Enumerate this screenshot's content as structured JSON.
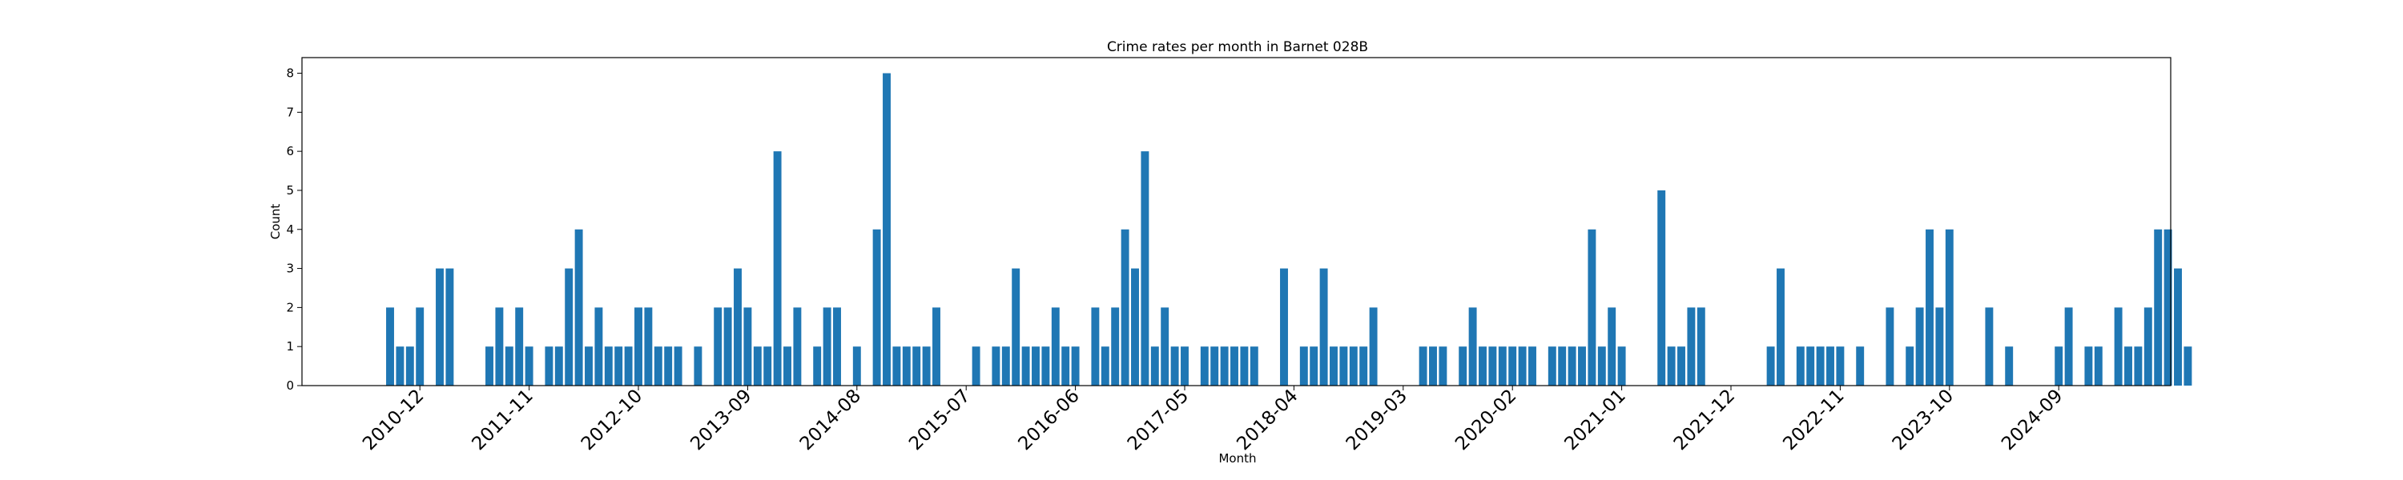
{
  "chart_data": {
    "type": "bar",
    "title": "Crime rates per month in Barnet 028B",
    "xlabel": "Month",
    "ylabel": "Count",
    "ylim": [
      0,
      8.4
    ],
    "yticks": [
      0,
      1,
      2,
      3,
      4,
      5,
      6,
      7,
      8
    ],
    "xtick_labels": [
      "2010-12",
      "2011-11",
      "2012-10",
      "2013-09",
      "2014-08",
      "2015-07",
      "2016-06",
      "2017-05",
      "2018-04",
      "2019-03",
      "2020-02",
      "2021-01",
      "2021-12",
      "2022-11",
      "2023-10",
      "2024-09"
    ],
    "grid": false,
    "bar_color": "#1f77b4",
    "values": [
      2,
      1,
      1,
      2,
      0,
      3,
      3,
      0,
      0,
      0,
      1,
      2,
      1,
      2,
      1,
      0,
      1,
      1,
      3,
      4,
      1,
      2,
      1,
      1,
      1,
      2,
      2,
      1,
      1,
      1,
      0,
      1,
      0,
      2,
      2,
      3,
      2,
      1,
      1,
      6,
      1,
      2,
      0,
      1,
      2,
      2,
      0,
      1,
      0,
      4,
      8,
      1,
      1,
      1,
      1,
      2,
      0,
      0,
      0,
      1,
      0,
      1,
      1,
      3,
      1,
      1,
      1,
      2,
      1,
      1,
      0,
      2,
      1,
      2,
      4,
      3,
      6,
      1,
      2,
      1,
      1,
      0,
      1,
      1,
      1,
      1,
      1,
      1,
      0,
      0,
      3,
      0,
      1,
      1,
      3,
      1,
      1,
      1,
      1,
      2,
      0,
      0,
      0,
      0,
      1,
      1,
      1,
      0,
      1,
      2,
      1,
      1,
      1,
      1,
      1,
      1,
      0,
      1,
      1,
      1,
      1,
      4,
      1,
      2,
      1,
      0,
      0,
      0,
      5,
      1,
      1,
      2,
      2,
      0,
      0,
      0,
      0,
      0,
      0,
      1,
      3,
      0,
      1,
      1,
      1,
      1,
      1,
      0,
      1,
      0,
      0,
      2,
      0,
      1,
      2,
      4,
      2,
      4,
      0,
      0,
      0,
      2,
      0,
      1,
      0,
      0,
      0,
      0,
      1,
      2,
      0,
      1,
      1,
      0,
      2,
      1,
      1,
      2,
      4,
      4,
      3,
      1
    ]
  }
}
